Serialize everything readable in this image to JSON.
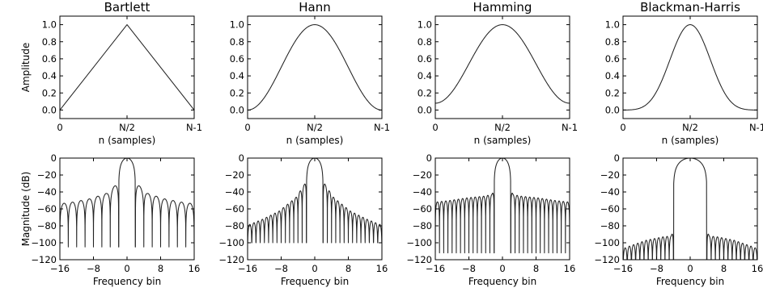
{
  "chart_data": [
    {
      "type": "line",
      "panel": "window-bartlett",
      "title": "Bartlett",
      "xlabel": "n (samples)",
      "ylabel": "Amplitude",
      "xlim": [
        0,
        1
      ],
      "ylim": [
        -0.1,
        1.1
      ],
      "xtick_values": [
        0,
        0.5,
        1
      ],
      "xtick_labels": [
        "0",
        "N/2",
        "N-1"
      ],
      "ytick_values": [
        0,
        0.2,
        0.4,
        0.6,
        0.8,
        1.0
      ],
      "ytick_labels": [
        "0.0",
        "0.2",
        "0.4",
        "0.6",
        "0.8",
        "1.0"
      ],
      "series": [
        {
          "x": [
            0,
            0.5,
            1
          ],
          "y": [
            0,
            1,
            0
          ]
        }
      ]
    },
    {
      "type": "line",
      "panel": "window-hann",
      "title": "Hann",
      "xlabel": "n (samples)",
      "ylabel": "",
      "xlim": [
        0,
        1
      ],
      "ylim": [
        -0.1,
        1.1
      ],
      "xtick_values": [
        0,
        0.5,
        1
      ],
      "xtick_labels": [
        "0",
        "N/2",
        "N-1"
      ],
      "ytick_values": [
        0,
        0.2,
        0.4,
        0.6,
        0.8,
        1.0
      ],
      "ytick_labels": [
        "0.0",
        "0.2",
        "0.4",
        "0.6",
        "0.8",
        "1.0"
      ],
      "series": [
        {
          "x": [
            0,
            0.1,
            0.2,
            0.3,
            0.4,
            0.5,
            0.6,
            0.7,
            0.8,
            0.9,
            1
          ],
          "y": [
            0,
            0.095,
            0.345,
            0.655,
            0.905,
            1,
            0.905,
            0.655,
            0.345,
            0.095,
            0
          ]
        }
      ]
    },
    {
      "type": "line",
      "panel": "window-hamming",
      "title": "Hamming",
      "xlabel": "n (samples)",
      "ylabel": "",
      "xlim": [
        0,
        1
      ],
      "ylim": [
        -0.1,
        1.1
      ],
      "xtick_values": [
        0,
        0.5,
        1
      ],
      "xtick_labels": [
        "0",
        "N/2",
        "N-1"
      ],
      "ytick_values": [
        0,
        0.2,
        0.4,
        0.6,
        0.8,
        1.0
      ],
      "ytick_labels": [
        "0.0",
        "0.2",
        "0.4",
        "0.6",
        "0.8",
        "1.0"
      ],
      "series": [
        {
          "x": [
            0,
            0.1,
            0.2,
            0.3,
            0.4,
            0.5,
            0.6,
            0.7,
            0.8,
            0.9,
            1
          ],
          "y": [
            0.08,
            0.167,
            0.397,
            0.683,
            0.913,
            1,
            0.913,
            0.683,
            0.397,
            0.167,
            0.08
          ]
        }
      ]
    },
    {
      "type": "line",
      "panel": "window-blackman-harris",
      "title": "Blackman-Harris",
      "xlabel": "n (samples)",
      "ylabel": "",
      "xlim": [
        0,
        1
      ],
      "ylim": [
        -0.1,
        1.1
      ],
      "xtick_values": [
        0,
        0.5,
        1
      ],
      "xtick_labels": [
        "0",
        "N/2",
        "N-1"
      ],
      "ytick_values": [
        0,
        0.2,
        0.4,
        0.6,
        0.8,
        1.0
      ],
      "ytick_labels": [
        "0.0",
        "0.2",
        "0.4",
        "0.6",
        "0.8",
        "1.0"
      ],
      "series": [
        {
          "x": [
            0,
            0.1,
            0.2,
            0.3,
            0.4,
            0.5,
            0.6,
            0.7,
            0.8,
            0.9,
            1
          ],
          "y": [
            0,
            0.011,
            0.107,
            0.401,
            0.794,
            1,
            0.794,
            0.401,
            0.107,
            0.011,
            0
          ]
        }
      ]
    },
    {
      "type": "line",
      "panel": "spectrum-bartlett",
      "title": "",
      "xlabel": "Frequency bin",
      "ylabel": "Magnitude (dB)",
      "xlim": [
        -16,
        16
      ],
      "ylim": [
        -120,
        0
      ],
      "xtick_values": [
        -16,
        -8,
        0,
        8,
        16
      ],
      "xtick_labels": [
        "−16",
        "−8",
        "0",
        "8",
        "16"
      ],
      "ytick_values": [
        0,
        -20,
        -40,
        -60,
        -80,
        -100,
        -120
      ],
      "ytick_labels": [
        "0",
        "−20",
        "−40",
        "−60",
        "−80",
        "−100",
        "−120"
      ],
      "series": [
        {
          "x": [
            0,
            1.5,
            2.8,
            4.8,
            8.8,
            12.8,
            16
          ],
          "y": [
            0,
            -26.5,
            -32.3,
            -41.5,
            -48,
            -51.9,
            -54
          ]
        }
      ],
      "nulls_every_bins": 2,
      "mainlobe_halfwidth_bins": 2,
      "null_depth_db": -105
    },
    {
      "type": "line",
      "panel": "spectrum-hann",
      "title": "",
      "xlabel": "Frequency bin",
      "ylabel": "",
      "xlim": [
        -16,
        16
      ],
      "ylim": [
        -120,
        0
      ],
      "xtick_values": [
        -16,
        -8,
        0,
        8,
        16
      ],
      "xtick_labels": [
        "−16",
        "−8",
        "0",
        "8",
        "16"
      ],
      "ytick_values": [
        0,
        -20,
        -40,
        -60,
        -80,
        -100,
        -120
      ],
      "ytick_labels": [
        "0",
        "−20",
        "−40",
        "−60",
        "−80",
        "−100",
        "−120"
      ],
      "series": [
        {
          "x": [
            0,
            2.5,
            4.5,
            8.5,
            12.5,
            16
          ],
          "y": [
            0,
            -31.5,
            -46.5,
            -62.6,
            -72.3,
            -79.3
          ]
        }
      ],
      "nulls_every_bins": 1,
      "mainlobe_halfwidth_bins": 2,
      "null_depth_db": -100
    },
    {
      "type": "line",
      "panel": "spectrum-hamming",
      "title": "",
      "xlabel": "Frequency bin",
      "ylabel": "",
      "xlim": [
        -16,
        16
      ],
      "ylim": [
        -120,
        0
      ],
      "xtick_values": [
        -16,
        -8,
        0,
        8,
        16
      ],
      "xtick_labels": [
        "−16",
        "−8",
        "0",
        "8",
        "16"
      ],
      "ytick_values": [
        0,
        -20,
        -40,
        -60,
        -80,
        -100,
        -120
      ],
      "ytick_labels": [
        "0",
        "−20",
        "−40",
        "−60",
        "−80",
        "−100",
        "−120"
      ],
      "series": [
        {
          "x": [
            0,
            2.5,
            4.5,
            8.5,
            12.5,
            16
          ],
          "y": [
            0,
            -43,
            -45,
            -47,
            -50,
            -52
          ]
        }
      ],
      "nulls_every_bins": 1,
      "mainlobe_halfwidth_bins": 2,
      "null_depth_db": -112
    },
    {
      "type": "line",
      "panel": "spectrum-blackman-harris",
      "title": "",
      "xlabel": "Frequency bin",
      "ylabel": "",
      "xlim": [
        -16,
        16
      ],
      "ylim": [
        -120,
        0
      ],
      "xtick_values": [
        -16,
        -8,
        0,
        8,
        16
      ],
      "xtick_labels": [
        "−16",
        "−8",
        "0",
        "8",
        "16"
      ],
      "ytick_values": [
        0,
        -20,
        -40,
        -60,
        -80,
        -100,
        -120
      ],
      "ytick_labels": [
        "0",
        "−20",
        "−40",
        "−60",
        "−80",
        "−100",
        "−120"
      ],
      "series": [
        {
          "x": [
            0,
            4.5,
            6.5,
            10.5,
            14.5,
            16
          ],
          "y": [
            0,
            -92,
            -93,
            -97,
            -104,
            -107
          ]
        }
      ],
      "nulls_every_bins": 1,
      "mainlobe_halfwidth_bins": 4,
      "null_depth_db": -125
    }
  ]
}
